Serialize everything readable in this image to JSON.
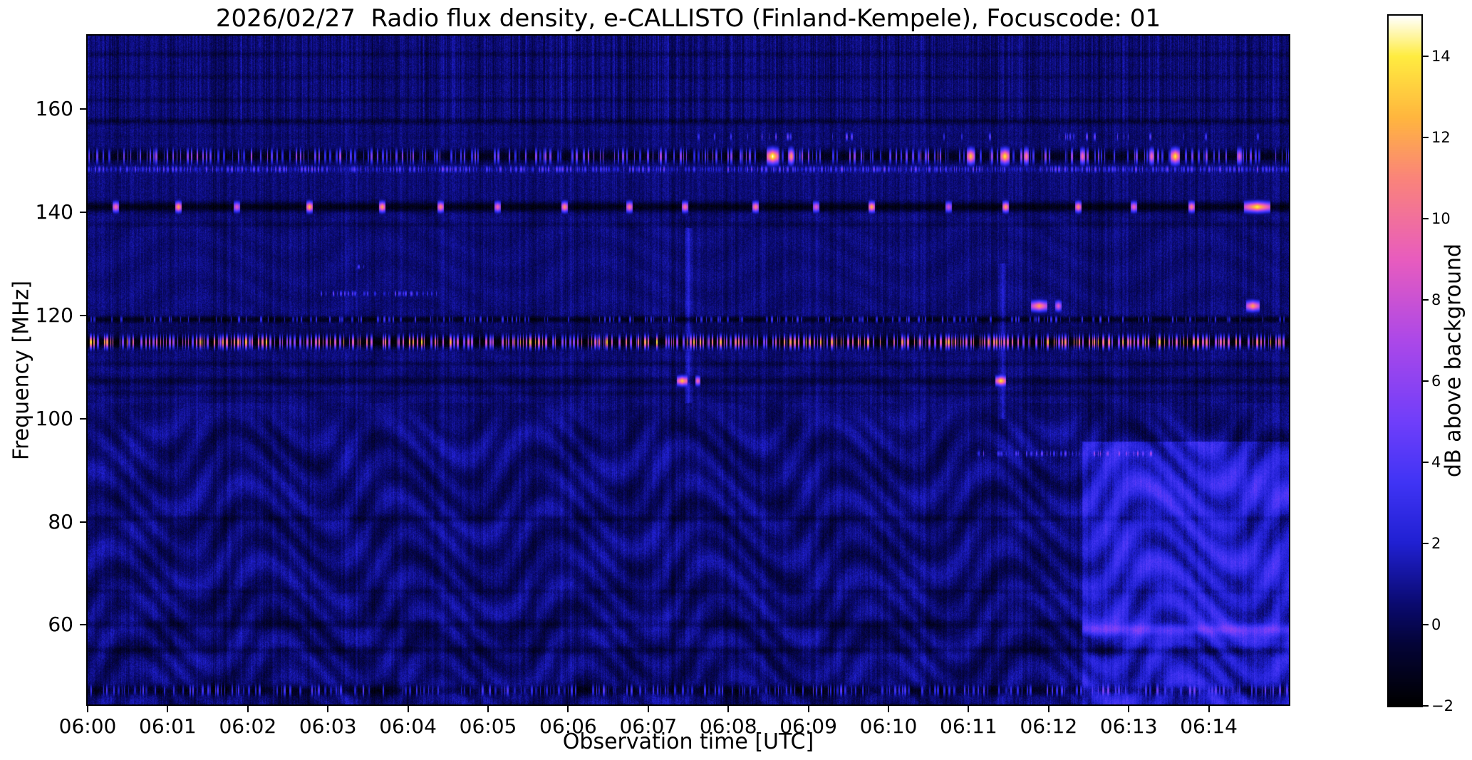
{
  "chart_data": {
    "type": "heatmap",
    "title": "2026/02/27  Radio flux density, e-CALLISTO (Finland-Kempele), Focuscode: 01",
    "xlabel": "Observation time [UTC]",
    "ylabel": "Frequency [MHz]",
    "x_ticks": [
      "06:00",
      "06:01",
      "06:02",
      "06:03",
      "06:04",
      "06:05",
      "06:06",
      "06:07",
      "06:08",
      "06:09",
      "06:10",
      "06:11",
      "06:12",
      "06:13",
      "06:14"
    ],
    "x_range_minutes": [
      0,
      15
    ],
    "y_ticks": [
      "160",
      "140",
      "120",
      "100",
      "80",
      "60"
    ],
    "y_tick_values": [
      160,
      140,
      120,
      100,
      80,
      60
    ],
    "freq_range_mhz": [
      44.6,
      174.2
    ],
    "grid": false,
    "colorbar": {
      "label": "dB above background",
      "ticks": [
        "14",
        "12",
        "10",
        "8",
        "6",
        "4",
        "2",
        "0",
        "−2"
      ],
      "tick_values": [
        14,
        12,
        10,
        8,
        6,
        4,
        2,
        0,
        -2
      ],
      "range": [
        -2,
        15
      ],
      "position": "right"
    },
    "colormap_stops": [
      [
        -2,
        [
          0,
          0,
          0
        ]
      ],
      [
        -0.5,
        [
          4,
          4,
          55
        ]
      ],
      [
        0.5,
        [
          10,
          10,
          112
        ]
      ],
      [
        2,
        [
          32,
          32,
          210
        ]
      ],
      [
        3.5,
        [
          64,
          52,
          245
        ]
      ],
      [
        5,
        [
          112,
          62,
          250
        ]
      ],
      [
        7,
        [
          172,
          72,
          232
        ]
      ],
      [
        9,
        [
          232,
          92,
          190
        ]
      ],
      [
        11,
        [
          250,
          132,
          122
        ]
      ],
      [
        12.5,
        [
          255,
          182,
          62
        ]
      ],
      [
        14,
        [
          255,
          236,
          64
        ]
      ],
      [
        15,
        [
          255,
          255,
          255
        ]
      ]
    ],
    "noise": {
      "base": 0.55,
      "pixel": 0.55,
      "column": 0.45,
      "top_band_min_freq": 157.5,
      "top_band_column": 0.55
    },
    "features": {
      "fringes": {
        "low_max_freq": 103,
        "low_amp": 0.5,
        "low_amp2": 0.32,
        "mid_max_freq": 140,
        "mid_amp": 0.16
      },
      "bright_region": {
        "t_start": 12.42,
        "freq_max": 95.5,
        "boost": 1.5,
        "fringe_gain": 1.6,
        "bands": [
          {
            "freq": 86.0,
            "width": 4.0,
            "boost": 0.7
          },
          {
            "freq": 71.0,
            "width": 3.0,
            "boost": 0.4
          },
          {
            "freq": 59.3,
            "width": 1.3,
            "boost": 2.6
          },
          {
            "freq": 54.8,
            "width": 1.0,
            "boost": -0.8
          }
        ]
      },
      "vertical_smears": [
        {
          "t": 7.5,
          "f_min": 103,
          "f_max": 137,
          "boost": 1.6,
          "span": 0.1
        },
        {
          "t": 11.42,
          "f_min": 100,
          "f_max": 130,
          "boost": 1.4,
          "span": 0.1
        }
      ],
      "rfi_lines": [
        {
          "freq": 170.6,
          "width": 0.5,
          "delta": -0.6
        },
        {
          "freq": 166.2,
          "width": 0.5,
          "delta": -0.5
        },
        {
          "freq": 161.7,
          "width": 0.5,
          "delta": -0.6
        },
        {
          "freq": 157.6,
          "width": 0.6,
          "delta": -1.0
        },
        {
          "freq": 154.6,
          "width": 0.7,
          "delta": -0.2,
          "speckles": {
            "density": 0.05,
            "min": 3,
            "max": 6,
            "t0": 7.4,
            "t1": 14.6
          }
        },
        {
          "freq": 150.8,
          "width": 1.3,
          "delta": -1.7,
          "speckles": {
            "density": 0.22,
            "min": 2.5,
            "max": 8,
            "t0": 0,
            "t1": 15
          },
          "bursts": [
            {
              "t": 8.55,
              "v": 15,
              "span": 0.14
            },
            {
              "t": 8.78,
              "v": 12,
              "span": 0.06
            },
            {
              "t": 11.02,
              "v": 13,
              "span": 0.09
            },
            {
              "t": 11.45,
              "v": 14,
              "span": 0.11
            },
            {
              "t": 11.72,
              "v": 11,
              "span": 0.05
            },
            {
              "t": 12.42,
              "v": 10,
              "span": 0.05
            },
            {
              "t": 13.28,
              "v": 10,
              "span": 0.06
            },
            {
              "t": 13.58,
              "v": 14,
              "span": 0.11
            },
            {
              "t": 14.38,
              "v": 9,
              "span": 0.05
            }
          ]
        },
        {
          "freq": 148.3,
          "width": 0.6,
          "delta": 0.3,
          "speckles": {
            "density": 0.5,
            "min": 2,
            "max": 6,
            "t0": 0,
            "t1": 15
          }
        },
        {
          "freq": 141.0,
          "width": 0.9,
          "delta": -1.9,
          "periodic_bursts": {
            "phase": 0.35,
            "period": 0.82,
            "jitter": 0.3,
            "min": 7,
            "max": 13,
            "span": 0.08
          },
          "bursts": [
            {
              "t": 14.6,
              "v": 14,
              "span": 0.32
            }
          ]
        },
        {
          "freq": 137.6,
          "width": 0.5,
          "delta": -0.5
        },
        {
          "freq": 129.4,
          "width": 0.4,
          "delta": 0,
          "speckles": {
            "density": 0.05,
            "min": 3,
            "max": 6,
            "t0": 3.3,
            "t1": 3.9
          }
        },
        {
          "freq": 124.2,
          "width": 0.5,
          "delta": 0,
          "speckles": {
            "density": 0.22,
            "min": 2.5,
            "max": 5.5,
            "t0": 2.9,
            "t1": 4.4
          }
        },
        {
          "freq": 121.8,
          "width": 0.9,
          "delta": 0,
          "bursts": [
            {
              "t": 11.88,
              "v": 12,
              "span": 0.2
            },
            {
              "t": 12.12,
              "v": 9,
              "span": 0.08
            },
            {
              "t": 14.55,
              "v": 12,
              "span": 0.16
            }
          ]
        },
        {
          "freq": 119.2,
          "width": 0.6,
          "delta": -1.7,
          "speckles": {
            "density": 0.12,
            "min": 2,
            "max": 4.5,
            "t0": 0,
            "t1": 15
          }
        },
        {
          "freq": 117.0,
          "width": 1.4,
          "delta": -0.5
        },
        {
          "freq": 114.8,
          "width": 1.1,
          "delta": -2.3,
          "speckles": {
            "density": 0.4,
            "min": 6,
            "max": 15,
            "t0": 0,
            "t1": 15
          }
        },
        {
          "freq": 110.6,
          "width": 0.5,
          "delta": -0.6
        },
        {
          "freq": 107.3,
          "width": 0.8,
          "delta": -0.9,
          "bursts": [
            {
              "t": 7.42,
              "v": 13,
              "span": 0.13
            },
            {
              "t": 7.62,
              "v": 10,
              "span": 0.05
            },
            {
              "t": 11.4,
              "v": 13,
              "span": 0.13
            }
          ]
        },
        {
          "freq": 104.9,
          "width": 0.5,
          "delta": -0.5
        },
        {
          "freq": 93.2,
          "width": 0.55,
          "delta": 0,
          "speckles": {
            "density": 0.16,
            "min": 3,
            "max": 6.5,
            "t0": 11.1,
            "t1": 13.3
          }
        },
        {
          "freq": 80.6,
          "width": 0.6,
          "delta": -0.6
        },
        {
          "freq": 66.5,
          "width": 0.5,
          "delta": -0.4
        },
        {
          "freq": 60.1,
          "width": 0.8,
          "delta": -0.7
        },
        {
          "freq": 55.1,
          "width": 0.7,
          "delta": -0.7
        },
        {
          "freq": 47.3,
          "width": 1.0,
          "delta": -1.3,
          "speckles": {
            "density": 0.22,
            "min": 1.5,
            "max": 5,
            "t0": 0,
            "t1": 15
          }
        }
      ]
    }
  }
}
